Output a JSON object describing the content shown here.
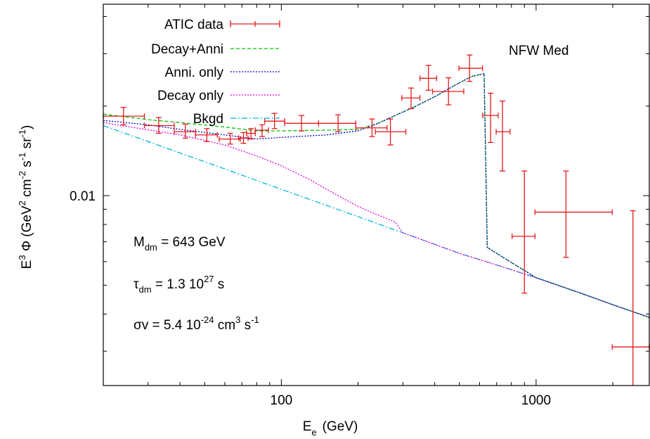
{
  "chart_data": {
    "type": "line",
    "x_scale": "log",
    "y_scale": "log",
    "xlim": [
      20,
      2800
    ],
    "ylim": [
      0.0023,
      0.044
    ],
    "xlabel": "E",
    "xlabel_sub": "e",
    "xlabel_unit": "(GeV)",
    "ylabel_parts": [
      "E",
      "3",
      " Φ (GeV",
      "2",
      " cm",
      "-2",
      " s",
      "-1",
      " sr",
      "-1",
      ")"
    ],
    "x_ticks": [
      {
        "value": 100,
        "label": "100"
      },
      {
        "value": 1000,
        "label": "1000"
      }
    ],
    "y_ticks": [
      {
        "value": 0.01,
        "label": "0.01"
      }
    ],
    "legend": {
      "placement": "top-left",
      "entries": [
        {
          "label": "ATIC data",
          "color": "#e41a1c",
          "style": "errorbar"
        },
        {
          "label": "Decay+Anni",
          "color": "#00c000",
          "style": "dashed"
        },
        {
          "label": "Anni. only",
          "color": "#0000c0",
          "style": "dotted"
        },
        {
          "label": "Decay only",
          "color": "#e000e0",
          "style": "dotted"
        },
        {
          "label": "Bkgd",
          "color": "#00b8d8",
          "style": "dashdot"
        }
      ]
    },
    "annotations": {
      "model": "NFW Med",
      "mass": {
        "sym": "M",
        "sub": "dm",
        "rest": " = 643 GeV"
      },
      "tau": {
        "sym": "τ",
        "sub": "dm",
        "mid": " = 1.3 10",
        "sup": "27",
        "rest": " s"
      },
      "sigma": {
        "pre": "σv = 5.4 10",
        "sup1": "-24",
        "mid": " cm",
        "sup2": "3",
        "mid2": " s",
        "sup3": "-1"
      }
    },
    "atic_data": [
      {
        "x": 24,
        "xlo": 20,
        "xhi": 29,
        "y": 0.0185,
        "ylo": 0.0173,
        "yhi": 0.0198
      },
      {
        "x": 33,
        "xlo": 29,
        "xhi": 38,
        "y": 0.0172,
        "ylo": 0.0162,
        "yhi": 0.0183
      },
      {
        "x": 42,
        "xlo": 38,
        "xhi": 46,
        "y": 0.0164,
        "ylo": 0.0156,
        "yhi": 0.0174
      },
      {
        "x": 51,
        "xlo": 46,
        "xhi": 56,
        "y": 0.016,
        "ylo": 0.0152,
        "yhi": 0.0168
      },
      {
        "x": 63,
        "xlo": 57,
        "xhi": 69,
        "y": 0.0155,
        "ylo": 0.0149,
        "yhi": 0.0162
      },
      {
        "x": 71,
        "xlo": 68,
        "xhi": 74,
        "y": 0.0156,
        "ylo": 0.015,
        "yhi": 0.0163
      },
      {
        "x": 76,
        "xlo": 73,
        "xhi": 79,
        "y": 0.0162,
        "ylo": 0.0155,
        "yhi": 0.0168
      },
      {
        "x": 84,
        "xlo": 79,
        "xhi": 89,
        "y": 0.0166,
        "ylo": 0.0158,
        "yhi": 0.0173
      },
      {
        "x": 94,
        "xlo": 86,
        "xhi": 103,
        "y": 0.0178,
        "ylo": 0.0168,
        "yhi": 0.0189
      },
      {
        "x": 120,
        "xlo": 103,
        "xhi": 140,
        "y": 0.0175,
        "ylo": 0.0165,
        "yhi": 0.0186
      },
      {
        "x": 167,
        "xlo": 140,
        "xhi": 196,
        "y": 0.0175,
        "ylo": 0.0164,
        "yhi": 0.0187
      },
      {
        "x": 227,
        "xlo": 196,
        "xhi": 260,
        "y": 0.0169,
        "ylo": 0.0158,
        "yhi": 0.0181
      },
      {
        "x": 268,
        "xlo": 234,
        "xhi": 308,
        "y": 0.0164,
        "ylo": 0.0148,
        "yhi": 0.0181
      },
      {
        "x": 323,
        "xlo": 297,
        "xhi": 350,
        "y": 0.0213,
        "ylo": 0.0196,
        "yhi": 0.023
      },
      {
        "x": 378,
        "xlo": 350,
        "xhi": 407,
        "y": 0.0248,
        "ylo": 0.0226,
        "yhi": 0.0274
      },
      {
        "x": 453,
        "xlo": 392,
        "xhi": 520,
        "y": 0.0224,
        "ylo": 0.0202,
        "yhi": 0.0249
      },
      {
        "x": 548,
        "xlo": 498,
        "xhi": 616,
        "y": 0.0268,
        "ylo": 0.0242,
        "yhi": 0.0297
      },
      {
        "x": 663,
        "xlo": 617,
        "xhi": 710,
        "y": 0.0186,
        "ylo": 0.0151,
        "yhi": 0.0221
      },
      {
        "x": 738,
        "xlo": 697,
        "xhi": 790,
        "y": 0.0164,
        "ylo": 0.0121,
        "yhi": 0.0208
      },
      {
        "x": 900,
        "xlo": 805,
        "xhi": 990,
        "y": 0.0073,
        "ylo": 0.0047,
        "yhi": 0.0121
      },
      {
        "x": 1310,
        "xlo": 990,
        "xhi": 1990,
        "y": 0.0088,
        "ylo": 0.0062,
        "yhi": 0.0121
      },
      {
        "x": 2400,
        "xlo": 1990,
        "xhi": 2800,
        "y": 0.0031,
        "ylo": 0.0014,
        "yhi": 0.0089
      }
    ],
    "series": [
      {
        "label": "Bkgd",
        "points": [
          [
            20,
            0.0172
          ],
          [
            50,
            0.013
          ],
          [
            100,
            0.0105
          ],
          [
            200,
            0.0085
          ],
          [
            300,
            0.0075
          ],
          [
            500,
            0.0064
          ],
          [
            700,
            0.00585
          ],
          [
            1000,
            0.0053
          ],
          [
            1500,
            0.0047
          ],
          [
            2000,
            0.0043
          ],
          [
            2800,
            0.00389
          ]
        ]
      },
      {
        "label": "Decay only",
        "points": [
          [
            20,
            0.0176
          ],
          [
            40,
            0.016
          ],
          [
            60,
            0.0148
          ],
          [
            80,
            0.0136
          ],
          [
            100,
            0.0126
          ],
          [
            130,
            0.0113
          ],
          [
            160,
            0.0102
          ],
          [
            200,
            0.0092
          ],
          [
            240,
            0.0086
          ],
          [
            280,
            0.00815
          ],
          [
            300,
            0.0075
          ],
          [
            500,
            0.0064
          ],
          [
            700,
            0.00585
          ],
          [
            1000,
            0.0053
          ],
          [
            1500,
            0.0047
          ],
          [
            2000,
            0.0043
          ],
          [
            2800,
            0.00389
          ]
        ]
      },
      {
        "label": "Decay+Anni",
        "points": [
          [
            20,
            0.0188
          ],
          [
            30,
            0.018
          ],
          [
            40,
            0.0176
          ],
          [
            60,
            0.017
          ],
          [
            80,
            0.0165
          ],
          [
            100,
            0.0165
          ],
          [
            150,
            0.0166
          ],
          [
            200,
            0.0167
          ],
          [
            240,
            0.0175
          ],
          [
            280,
            0.0186
          ],
          [
            330,
            0.0198
          ],
          [
            400,
            0.0215
          ],
          [
            480,
            0.0235
          ],
          [
            560,
            0.0252
          ],
          [
            625,
            0.0257
          ],
          [
            643,
            0.0067
          ],
          [
            700,
            0.0064
          ],
          [
            1000,
            0.0053
          ],
          [
            1500,
            0.0047
          ],
          [
            2000,
            0.0043
          ],
          [
            2800,
            0.00389
          ]
        ]
      },
      {
        "label": "Anni. only",
        "points": [
          [
            20,
            0.0179
          ],
          [
            30,
            0.0173
          ],
          [
            40,
            0.0167
          ],
          [
            60,
            0.016
          ],
          [
            80,
            0.0155
          ],
          [
            100,
            0.0157
          ],
          [
            150,
            0.016
          ],
          [
            200,
            0.0165
          ],
          [
            240,
            0.0175
          ],
          [
            280,
            0.0186
          ],
          [
            330,
            0.0198
          ],
          [
            400,
            0.0215
          ],
          [
            480,
            0.0235
          ],
          [
            560,
            0.0252
          ],
          [
            625,
            0.0257
          ],
          [
            643,
            0.0067
          ],
          [
            700,
            0.0064
          ],
          [
            1000,
            0.0053
          ],
          [
            1500,
            0.0047
          ],
          [
            2000,
            0.0043
          ],
          [
            2800,
            0.00389
          ]
        ]
      }
    ]
  }
}
